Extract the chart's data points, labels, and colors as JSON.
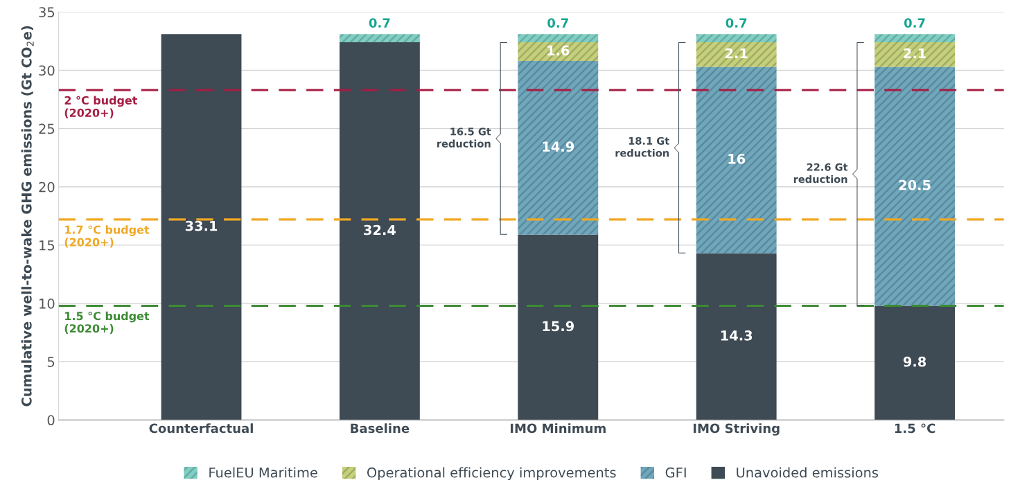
{
  "chart_data": {
    "type": "bar",
    "stacked": true,
    "ylabel": "Cumulative well-to-wake GHG emissions (Gt CO$_{2}$e)",
    "categories": [
      "Counterfactual",
      "Baseline",
      "IMO Minimum",
      "IMO Striving",
      "1.5 °C"
    ],
    "series": [
      {
        "name": "Unavoided emissions",
        "color": "#3e4a54",
        "values": [
          33.1,
          32.4,
          15.9,
          14.3,
          9.8
        ]
      },
      {
        "name": "GFI",
        "color": "#6fa7bd",
        "values": [
          null,
          null,
          14.9,
          16,
          20.5
        ]
      },
      {
        "name": "Operational efficiency improvements",
        "color": "#c5d07a",
        "values": [
          null,
          null,
          1.6,
          2.1,
          2.1
        ]
      },
      {
        "name": "FuelEU Maritime",
        "color": "#7fcfc4",
        "values": [
          null,
          0.7,
          0.7,
          0.7,
          0.7
        ]
      }
    ],
    "data_labels": true,
    "ylim": [
      0,
      35
    ],
    "yticks": [
      0,
      5,
      10,
      15,
      20,
      25,
      30,
      35
    ],
    "grid": "y",
    "legend": "bottom",
    "ref_lines": [
      {
        "axis": "y",
        "value": 28.3,
        "label": "2 °C budget\n(2020+)",
        "color": "#a51d42",
        "line_style": "dashed"
      },
      {
        "axis": "y",
        "value": 17.2,
        "label": "1.7 °C budget\n(2020+)",
        "color": "#f0a824",
        "line_style": "dashed"
      },
      {
        "axis": "y",
        "value": 9.8,
        "label": "1.5 °C budget\n(2020+)",
        "color": "#3d8a35",
        "line_style": "dashed"
      }
    ],
    "annotations": [
      "16.5 Gt\nreduction",
      "18.1 Gt\nreduction",
      "22.6 Gt\nreduction"
    ]
  }
}
